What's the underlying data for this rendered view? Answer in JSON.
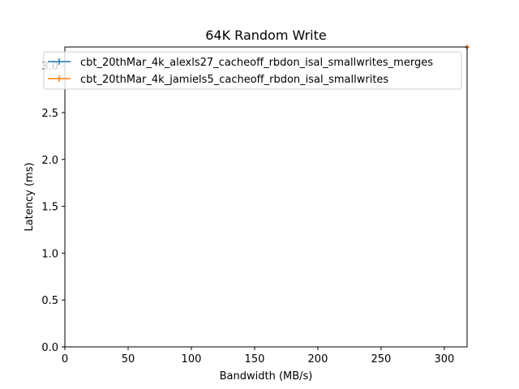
{
  "chart_data": {
    "type": "line",
    "title": "64K  Random Write",
    "xlabel": "Bandwidth (MB/s)",
    "ylabel": "Latency (ms)",
    "xlim": [
      0,
      318
    ],
    "ylim": [
      0,
      3.2
    ],
    "xticks": [
      0,
      50,
      100,
      150,
      200,
      250,
      300
    ],
    "xtick_labels": [
      "0",
      "50",
      "100",
      "150",
      "200",
      "250",
      "300"
    ],
    "yticks": [
      0.0,
      0.5,
      1.0,
      1.5,
      2.0,
      2.5,
      3.0
    ],
    "ytick_labels": [
      "0.0",
      "0.5",
      "1.0",
      "1.5",
      "2.0",
      "2.5",
      "3.0"
    ],
    "grid": false,
    "legend_position": "top-left",
    "series": [
      {
        "name": "cbt_20thMar_4k_alexls27_cacheoff_rbdon_isal_smallwrites_merges",
        "color": "#1f77b4",
        "points": [
          [
            318,
            3.2
          ]
        ]
      },
      {
        "name": "cbt_20thMar_4k_jamiels5_cacheoff_rbdon_isal_smallwrites",
        "color": "#ff7f0e",
        "points": [
          [
            318,
            3.2
          ]
        ]
      }
    ]
  }
}
